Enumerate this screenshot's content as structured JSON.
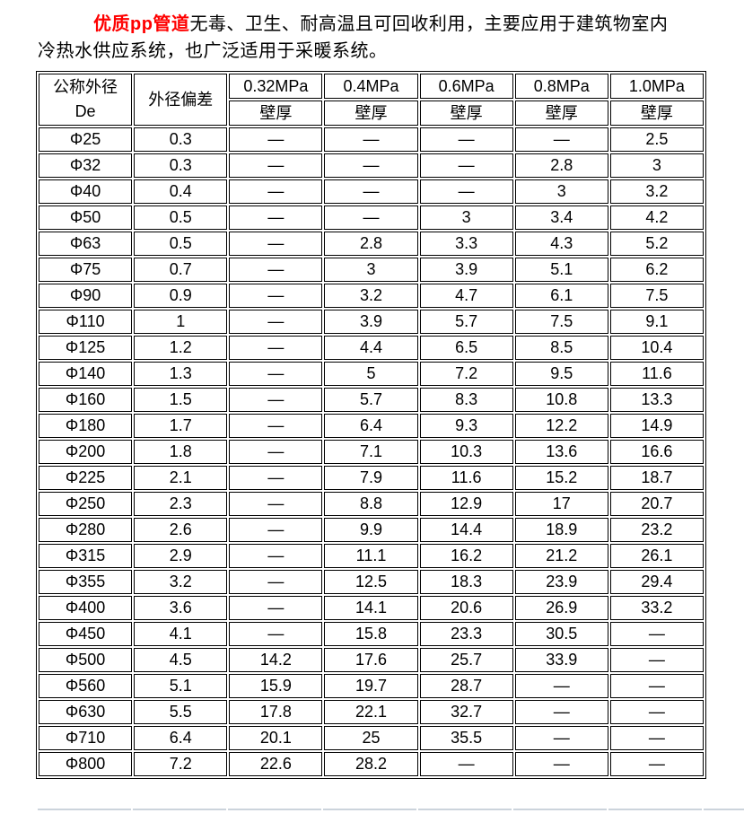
{
  "intro": {
    "highlight": "优质pp管道",
    "line1_rest": "无毒、卫生、耐高温且可回收利用，主要应用于建筑物室内",
    "line2": "冷热水供应系统，也广泛适用于采暖系统。"
  },
  "table": {
    "col_diameter_line1": "公称外径",
    "col_diameter_line2": "De",
    "col_deviation": "外径偏差",
    "pressures": [
      "0.32MPa",
      "0.4MPa",
      "0.6MPa",
      "0.8MPa",
      "1.0MPa"
    ],
    "wall_label": "壁厚",
    "rows": [
      [
        "Φ25",
        "0.3",
        "—",
        "—",
        "—",
        "—",
        "2.5"
      ],
      [
        "Φ32",
        "0.3",
        "—",
        "—",
        "—",
        "2.8",
        "3"
      ],
      [
        "Φ40",
        "0.4",
        "—",
        "—",
        "—",
        "3",
        "3.2"
      ],
      [
        "Φ50",
        "0.5",
        "—",
        "—",
        "3",
        "3.4",
        "4.2"
      ],
      [
        "Φ63",
        "0.5",
        "—",
        "2.8",
        "3.3",
        "4.3",
        "5.2"
      ],
      [
        "Φ75",
        "0.7",
        "—",
        "3",
        "3.9",
        "5.1",
        "6.2"
      ],
      [
        "Φ90",
        "0.9",
        "—",
        "3.2",
        "4.7",
        "6.1",
        "7.5"
      ],
      [
        "Φ110",
        "1",
        "—",
        "3.9",
        "5.7",
        "7.5",
        "9.1"
      ],
      [
        "Φ125",
        "1.2",
        "—",
        "4.4",
        "6.5",
        "8.5",
        "10.4"
      ],
      [
        "Φ140",
        "1.3",
        "—",
        "5",
        "7.2",
        "9.5",
        "11.6"
      ],
      [
        "Φ160",
        "1.5",
        "—",
        "5.7",
        "8.3",
        "10.8",
        "13.3"
      ],
      [
        "Φ180",
        "1.7",
        "—",
        "6.4",
        "9.3",
        "12.2",
        "14.9"
      ],
      [
        "Φ200",
        "1.8",
        "—",
        "7.1",
        "10.3",
        "13.6",
        "16.6"
      ],
      [
        "Φ225",
        "2.1",
        "—",
        "7.9",
        "11.6",
        "15.2",
        "18.7"
      ],
      [
        "Φ250",
        "2.3",
        "—",
        "8.8",
        "12.9",
        "17",
        "20.7"
      ],
      [
        "Φ280",
        "2.6",
        "—",
        "9.9",
        "14.4",
        "18.9",
        "23.2"
      ],
      [
        "Φ315",
        "2.9",
        "—",
        "11.1",
        "16.2",
        "21.2",
        "26.1"
      ],
      [
        "Φ355",
        "3.2",
        "—",
        "12.5",
        "18.3",
        "23.9",
        "29.4"
      ],
      [
        "Φ400",
        "3.6",
        "—",
        "14.1",
        "20.6",
        "26.9",
        "33.2"
      ],
      [
        "Φ450",
        "4.1",
        "—",
        "15.8",
        "23.3",
        "30.5",
        "—"
      ],
      [
        "Φ500",
        "4.5",
        "14.2",
        "17.6",
        "25.7",
        "33.9",
        "—"
      ],
      [
        "Φ560",
        "5.1",
        "15.9",
        "19.7",
        "28.7",
        "—",
        "—"
      ],
      [
        "Φ630",
        "5.5",
        "17.8",
        "22.1",
        "32.7",
        "—",
        "—"
      ],
      [
        "Φ710",
        "6.4",
        "20.1",
        "25",
        "35.5",
        "—",
        "—"
      ],
      [
        "Φ800",
        "7.2",
        "22.6",
        "28.2",
        "—",
        "—",
        "—"
      ]
    ]
  },
  "colors": {
    "title_red": "#ff0000",
    "table_border": "#000000",
    "partial_table_border": "#ccd4dc",
    "background": "#ffffff"
  }
}
